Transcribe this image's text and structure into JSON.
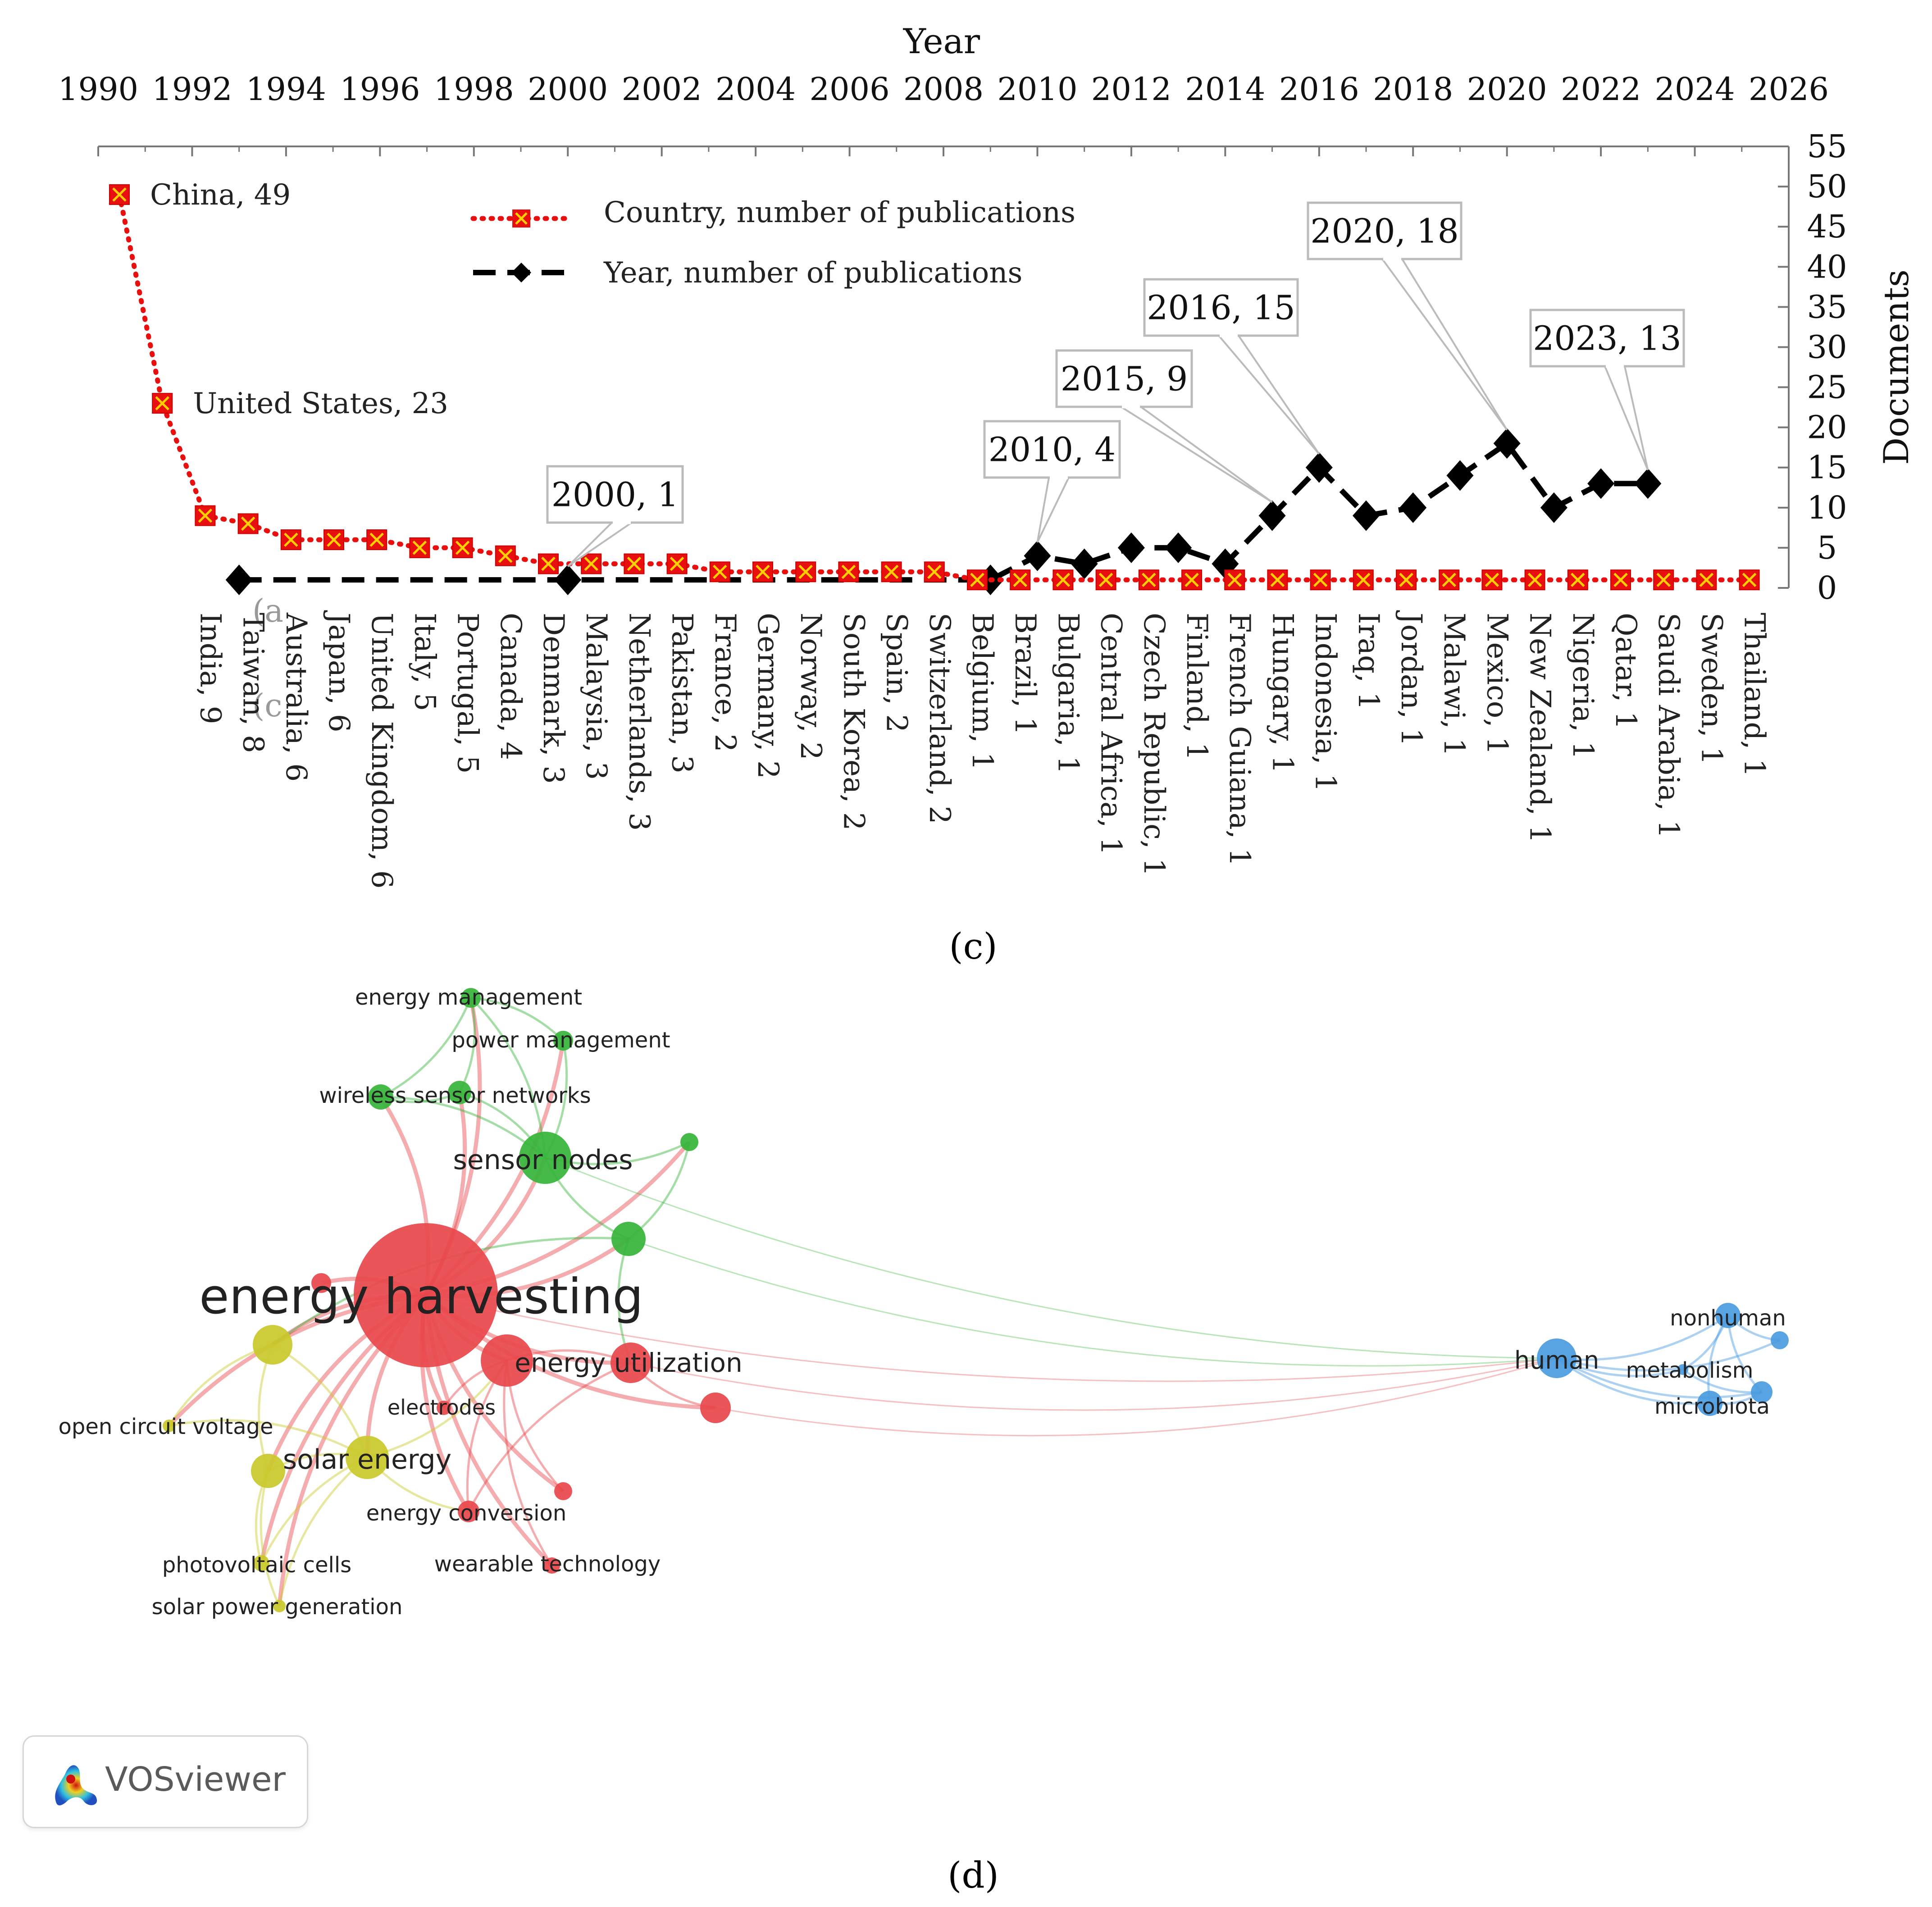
{
  "panel_labels": {
    "c": "(c)",
    "d": "(d)"
  },
  "chart_data": [
    {
      "type": "line",
      "title": "",
      "xlabel_top": "Year",
      "ylabel_right": "Documents",
      "top_axis_ticks": [
        "1990",
        "1992",
        "1994",
        "1996",
        "1998",
        "2000",
        "2002",
        "2004",
        "2006",
        "2008",
        "2010",
        "2012",
        "2014",
        "2016",
        "2018",
        "2020",
        "2022",
        "2024",
        "2026"
      ],
      "top_axis_range": [
        1990,
        2026
      ],
      "right_axis_ticks": [
        0,
        5,
        10,
        15,
        20,
        25,
        30,
        35,
        40,
        45,
        50,
        55
      ],
      "ylim": [
        0,
        55
      ],
      "legend": {
        "position": "top-center",
        "entries": [
          {
            "label": "Country, number of publications",
            "color": "#e8100f",
            "style": "dotted-square"
          },
          {
            "label": "Year, number of publications",
            "color": "#000000",
            "style": "dashed-diamond"
          }
        ]
      },
      "series_country": {
        "name": "Country, number of publications",
        "color": "#e8100f",
        "marker_fill": "#e8100f",
        "marker_accent": "#ffd000",
        "points": [
          {
            "label": "China, 49",
            "value": 49
          },
          {
            "label": "United States, 23",
            "value": 23
          },
          {
            "label": "India, 9",
            "value": 9
          },
          {
            "label": "Taiwan, 8",
            "value": 8
          },
          {
            "label": "Australia, 6",
            "value": 6
          },
          {
            "label": "Japan, 6",
            "value": 6
          },
          {
            "label": "United Kingdom, 6",
            "value": 6
          },
          {
            "label": "Italy, 5",
            "value": 5
          },
          {
            "label": "Portugal, 5",
            "value": 5
          },
          {
            "label": "Canada, 4",
            "value": 4
          },
          {
            "label": "Denmark, 3",
            "value": 3
          },
          {
            "label": "Malaysia, 3",
            "value": 3
          },
          {
            "label": "Netherlands, 3",
            "value": 3
          },
          {
            "label": "Pakistan, 3",
            "value": 3
          },
          {
            "label": "France, 2",
            "value": 2
          },
          {
            "label": "Germany, 2",
            "value": 2
          },
          {
            "label": "Norway, 2",
            "value": 2
          },
          {
            "label": "South Korea, 2",
            "value": 2
          },
          {
            "label": "Spain, 2",
            "value": 2
          },
          {
            "label": "Switzerland, 2",
            "value": 2
          },
          {
            "label": "Belgium, 1",
            "value": 1
          },
          {
            "label": "Brazil, 1",
            "value": 1
          },
          {
            "label": "Bulgaria, 1",
            "value": 1
          },
          {
            "label": "Central Africa, 1",
            "value": 1
          },
          {
            "label": "Czech Republic, 1",
            "value": 1
          },
          {
            "label": "Finland, 1",
            "value": 1
          },
          {
            "label": "French Guiana, 1",
            "value": 1
          },
          {
            "label": "Hungary, 1",
            "value": 1
          },
          {
            "label": "Indonesia, 1",
            "value": 1
          },
          {
            "label": "Iraq, 1",
            "value": 1
          },
          {
            "label": "Jordan, 1",
            "value": 1
          },
          {
            "label": "Malawi, 1",
            "value": 1
          },
          {
            "label": "Mexico, 1",
            "value": 1
          },
          {
            "label": "New Zealand, 1",
            "value": 1
          },
          {
            "label": "Nigeria, 1",
            "value": 1
          },
          {
            "label": "Qatar, 1",
            "value": 1
          },
          {
            "label": "Saudi Arabia, 1",
            "value": 1
          },
          {
            "label": "Sweden, 1",
            "value": 1
          },
          {
            "label": "Thailand, 1",
            "value": 1
          }
        ],
        "inline_labels": [
          "China, 49",
          "United States, 23"
        ]
      },
      "series_year": {
        "name": "Year, number of publications",
        "color": "#000000",
        "points": [
          {
            "x": 1993,
            "y": 1
          },
          {
            "x": 2000,
            "y": 1
          },
          {
            "x": 2009,
            "y": 1
          },
          {
            "x": 2010,
            "y": 4
          },
          {
            "x": 2011,
            "y": 3
          },
          {
            "x": 2012,
            "y": 5
          },
          {
            "x": 2013,
            "y": 5
          },
          {
            "x": 2014,
            "y": 3
          },
          {
            "x": 2015,
            "y": 9
          },
          {
            "x": 2016,
            "y": 15
          },
          {
            "x": 2017,
            "y": 9
          },
          {
            "x": 2018,
            "y": 10
          },
          {
            "x": 2019,
            "y": 14
          },
          {
            "x": 2020,
            "y": 18
          },
          {
            "x": 2021,
            "y": 10
          },
          {
            "x": 2022,
            "y": 13
          },
          {
            "x": 2023,
            "y": 13
          }
        ],
        "callouts": [
          {
            "text": "2000, 1",
            "x": 2000,
            "y": 1
          },
          {
            "text": "2010, 4",
            "x": 2010,
            "y": 4
          },
          {
            "text": "2015, 9",
            "x": 2015,
            "y": 9
          },
          {
            "text": "2016, 15",
            "x": 2016,
            "y": 15
          },
          {
            "text": "2020, 18",
            "x": 2020,
            "y": 18
          },
          {
            "text": "2023, 13",
            "x": 2023,
            "y": 13
          }
        ]
      },
      "overlay_fragments": [
        "(a",
        "(c"
      ]
    },
    {
      "type": "network",
      "title": "",
      "clusters": {
        "red": "#e8474b",
        "green": "#36b43a",
        "yellow": "#c9c92a",
        "blue": "#4a9be0"
      },
      "nodes": [
        {
          "id": "energy-harvesting",
          "label": "energy harvesting",
          "cluster": "red",
          "weight": 100
        },
        {
          "id": "energy-utilization",
          "label": "energy utilization",
          "cluster": "red",
          "weight": 18
        },
        {
          "id": "red-mid",
          "label": "",
          "cluster": "red",
          "weight": 22
        },
        {
          "id": "red-small-a",
          "label": "",
          "cluster": "red",
          "weight": 5
        },
        {
          "id": "red-right",
          "label": "",
          "cluster": "red",
          "weight": 7
        },
        {
          "id": "electrodes",
          "label": "electrodes",
          "cluster": "red",
          "weight": 3
        },
        {
          "id": "energy-conversion",
          "label": "energy conversion",
          "cluster": "red",
          "weight": 4
        },
        {
          "id": "red-small-b",
          "label": "",
          "cluster": "red",
          "weight": 3
        },
        {
          "id": "wearable-technology",
          "label": "wearable technology",
          "cluster": "red",
          "weight": 3
        },
        {
          "id": "sensor-nodes",
          "label": "sensor nodes",
          "cluster": "green",
          "weight": 22
        },
        {
          "id": "wireless-sensor-networks",
          "label": "wireless sensor networks",
          "cluster": "green",
          "weight": 6
        },
        {
          "id": "green-a",
          "label": "",
          "cluster": "green",
          "weight": 5
        },
        {
          "id": "energy-management",
          "label": "energy management",
          "cluster": "green",
          "weight": 4
        },
        {
          "id": "power-management",
          "label": "power management",
          "cluster": "green",
          "weight": 4
        },
        {
          "id": "green-mid",
          "label": "",
          "cluster": "green",
          "weight": 10
        },
        {
          "id": "green-right",
          "label": "",
          "cluster": "green",
          "weight": 3
        },
        {
          "id": "yellow-a",
          "label": "",
          "cluster": "yellow",
          "weight": 14
        },
        {
          "id": "solar-energy",
          "label": "solar energy",
          "cluster": "yellow",
          "weight": 18
        },
        {
          "id": "yellow-b",
          "label": "",
          "cluster": "yellow",
          "weight": 11
        },
        {
          "id": "open-circuit-voltage",
          "label": "open circuit voltage",
          "cluster": "yellow",
          "weight": 2
        },
        {
          "id": "photovoltaic-cells",
          "label": "photovoltaic cells",
          "cluster": "yellow",
          "weight": 3
        },
        {
          "id": "solar-power-generation",
          "label": "solar power generation",
          "cluster": "yellow",
          "weight": 2
        },
        {
          "id": "human",
          "label": "human",
          "cluster": "blue",
          "weight": 14
        },
        {
          "id": "nonhuman",
          "label": "nonhuman",
          "cluster": "blue",
          "weight": 6
        },
        {
          "id": "metabolism",
          "label": "metabolism",
          "cluster": "blue",
          "weight": 3
        },
        {
          "id": "microbiota",
          "label": "microbiota",
          "cluster": "blue",
          "weight": 6
        },
        {
          "id": "blue-a",
          "label": "",
          "cluster": "blue",
          "weight": 4
        },
        {
          "id": "blue-b",
          "label": "",
          "cluster": "blue",
          "weight": 5
        }
      ],
      "edges": [
        [
          "energy-harvesting",
          "energy-utilization"
        ],
        [
          "energy-harvesting",
          "red-mid"
        ],
        [
          "energy-harvesting",
          "sensor-nodes"
        ],
        [
          "energy-harvesting",
          "solar-energy"
        ],
        [
          "energy-harvesting",
          "yellow-a"
        ],
        [
          "energy-harvesting",
          "yellow-b"
        ],
        [
          "energy-harvesting",
          "green-mid"
        ],
        [
          "energy-harvesting",
          "wireless-sensor-networks"
        ],
        [
          "energy-harvesting",
          "green-a"
        ],
        [
          "energy-harvesting",
          "electrodes"
        ],
        [
          "energy-harvesting",
          "energy-conversion"
        ],
        [
          "energy-harvesting",
          "red-right"
        ],
        [
          "energy-harvesting",
          "red-small-a"
        ],
        [
          "energy-harvesting",
          "red-small-b"
        ],
        [
          "energy-harvesting",
          "wearable-technology"
        ],
        [
          "energy-harvesting",
          "energy-management"
        ],
        [
          "energy-harvesting",
          "power-management"
        ],
        [
          "energy-harvesting",
          "open-circuit-voltage"
        ],
        [
          "energy-harvesting",
          "photovoltaic-cells"
        ],
        [
          "energy-harvesting",
          "solar-power-generation"
        ],
        [
          "energy-harvesting",
          "green-right"
        ],
        [
          "energy-harvesting",
          "human"
        ],
        [
          "sensor-nodes",
          "wireless-sensor-networks"
        ],
        [
          "sensor-nodes",
          "green-a"
        ],
        [
          "sensor-nodes",
          "energy-management"
        ],
        [
          "sensor-nodes",
          "power-management"
        ],
        [
          "sensor-nodes",
          "green-mid"
        ],
        [
          "sensor-nodes",
          "green-right"
        ],
        [
          "wireless-sensor-networks",
          "green-a"
        ],
        [
          "wireless-sensor-networks",
          "energy-management"
        ],
        [
          "green-a",
          "energy-management"
        ],
        [
          "power-management",
          "energy-management"
        ],
        [
          "green-mid",
          "green-right"
        ],
        [
          "green-mid",
          "energy-utilization"
        ],
        [
          "green-mid",
          "human"
        ],
        [
          "sensor-nodes",
          "human"
        ],
        [
          "green-mid",
          "yellow-a"
        ],
        [
          "energy-utilization",
          "red-mid"
        ],
        [
          "energy-utilization",
          "red-right"
        ],
        [
          "energy-utilization",
          "human"
        ],
        [
          "red-mid",
          "electrodes"
        ],
        [
          "red-mid",
          "energy-conversion"
        ],
        [
          "red-mid",
          "red-small-b"
        ],
        [
          "red-right",
          "human"
        ],
        [
          "red-mid",
          "wearable-technology"
        ],
        [
          "energy-utilization",
          "energy-conversion"
        ],
        [
          "solar-energy",
          "yellow-a"
        ],
        [
          "solar-energy",
          "yellow-b"
        ],
        [
          "solar-energy",
          "open-circuit-voltage"
        ],
        [
          "solar-energy",
          "photovoltaic-cells"
        ],
        [
          "solar-energy",
          "solar-power-generation"
        ],
        [
          "yellow-a",
          "yellow-b"
        ],
        [
          "yellow-b",
          "photovoltaic-cells"
        ],
        [
          "yellow-a",
          "open-circuit-voltage"
        ],
        [
          "yellow-b",
          "solar-power-generation"
        ],
        [
          "solar-energy",
          "red-mid"
        ],
        [
          "solar-energy",
          "energy-conversion"
        ],
        [
          "human",
          "nonhuman"
        ],
        [
          "human",
          "metabolism"
        ],
        [
          "human",
          "microbiota"
        ],
        [
          "human",
          "blue-a"
        ],
        [
          "human",
          "blue-b"
        ],
        [
          "nonhuman",
          "blue-a"
        ],
        [
          "nonhuman",
          "blue-b"
        ],
        [
          "nonhuman",
          "microbiota"
        ],
        [
          "microbiota",
          "blue-b"
        ],
        [
          "metabolism",
          "blue-b"
        ],
        [
          "metabolism",
          "nonhuman"
        ]
      ]
    }
  ],
  "vosviewer_badge": {
    "text": "VOSviewer"
  }
}
